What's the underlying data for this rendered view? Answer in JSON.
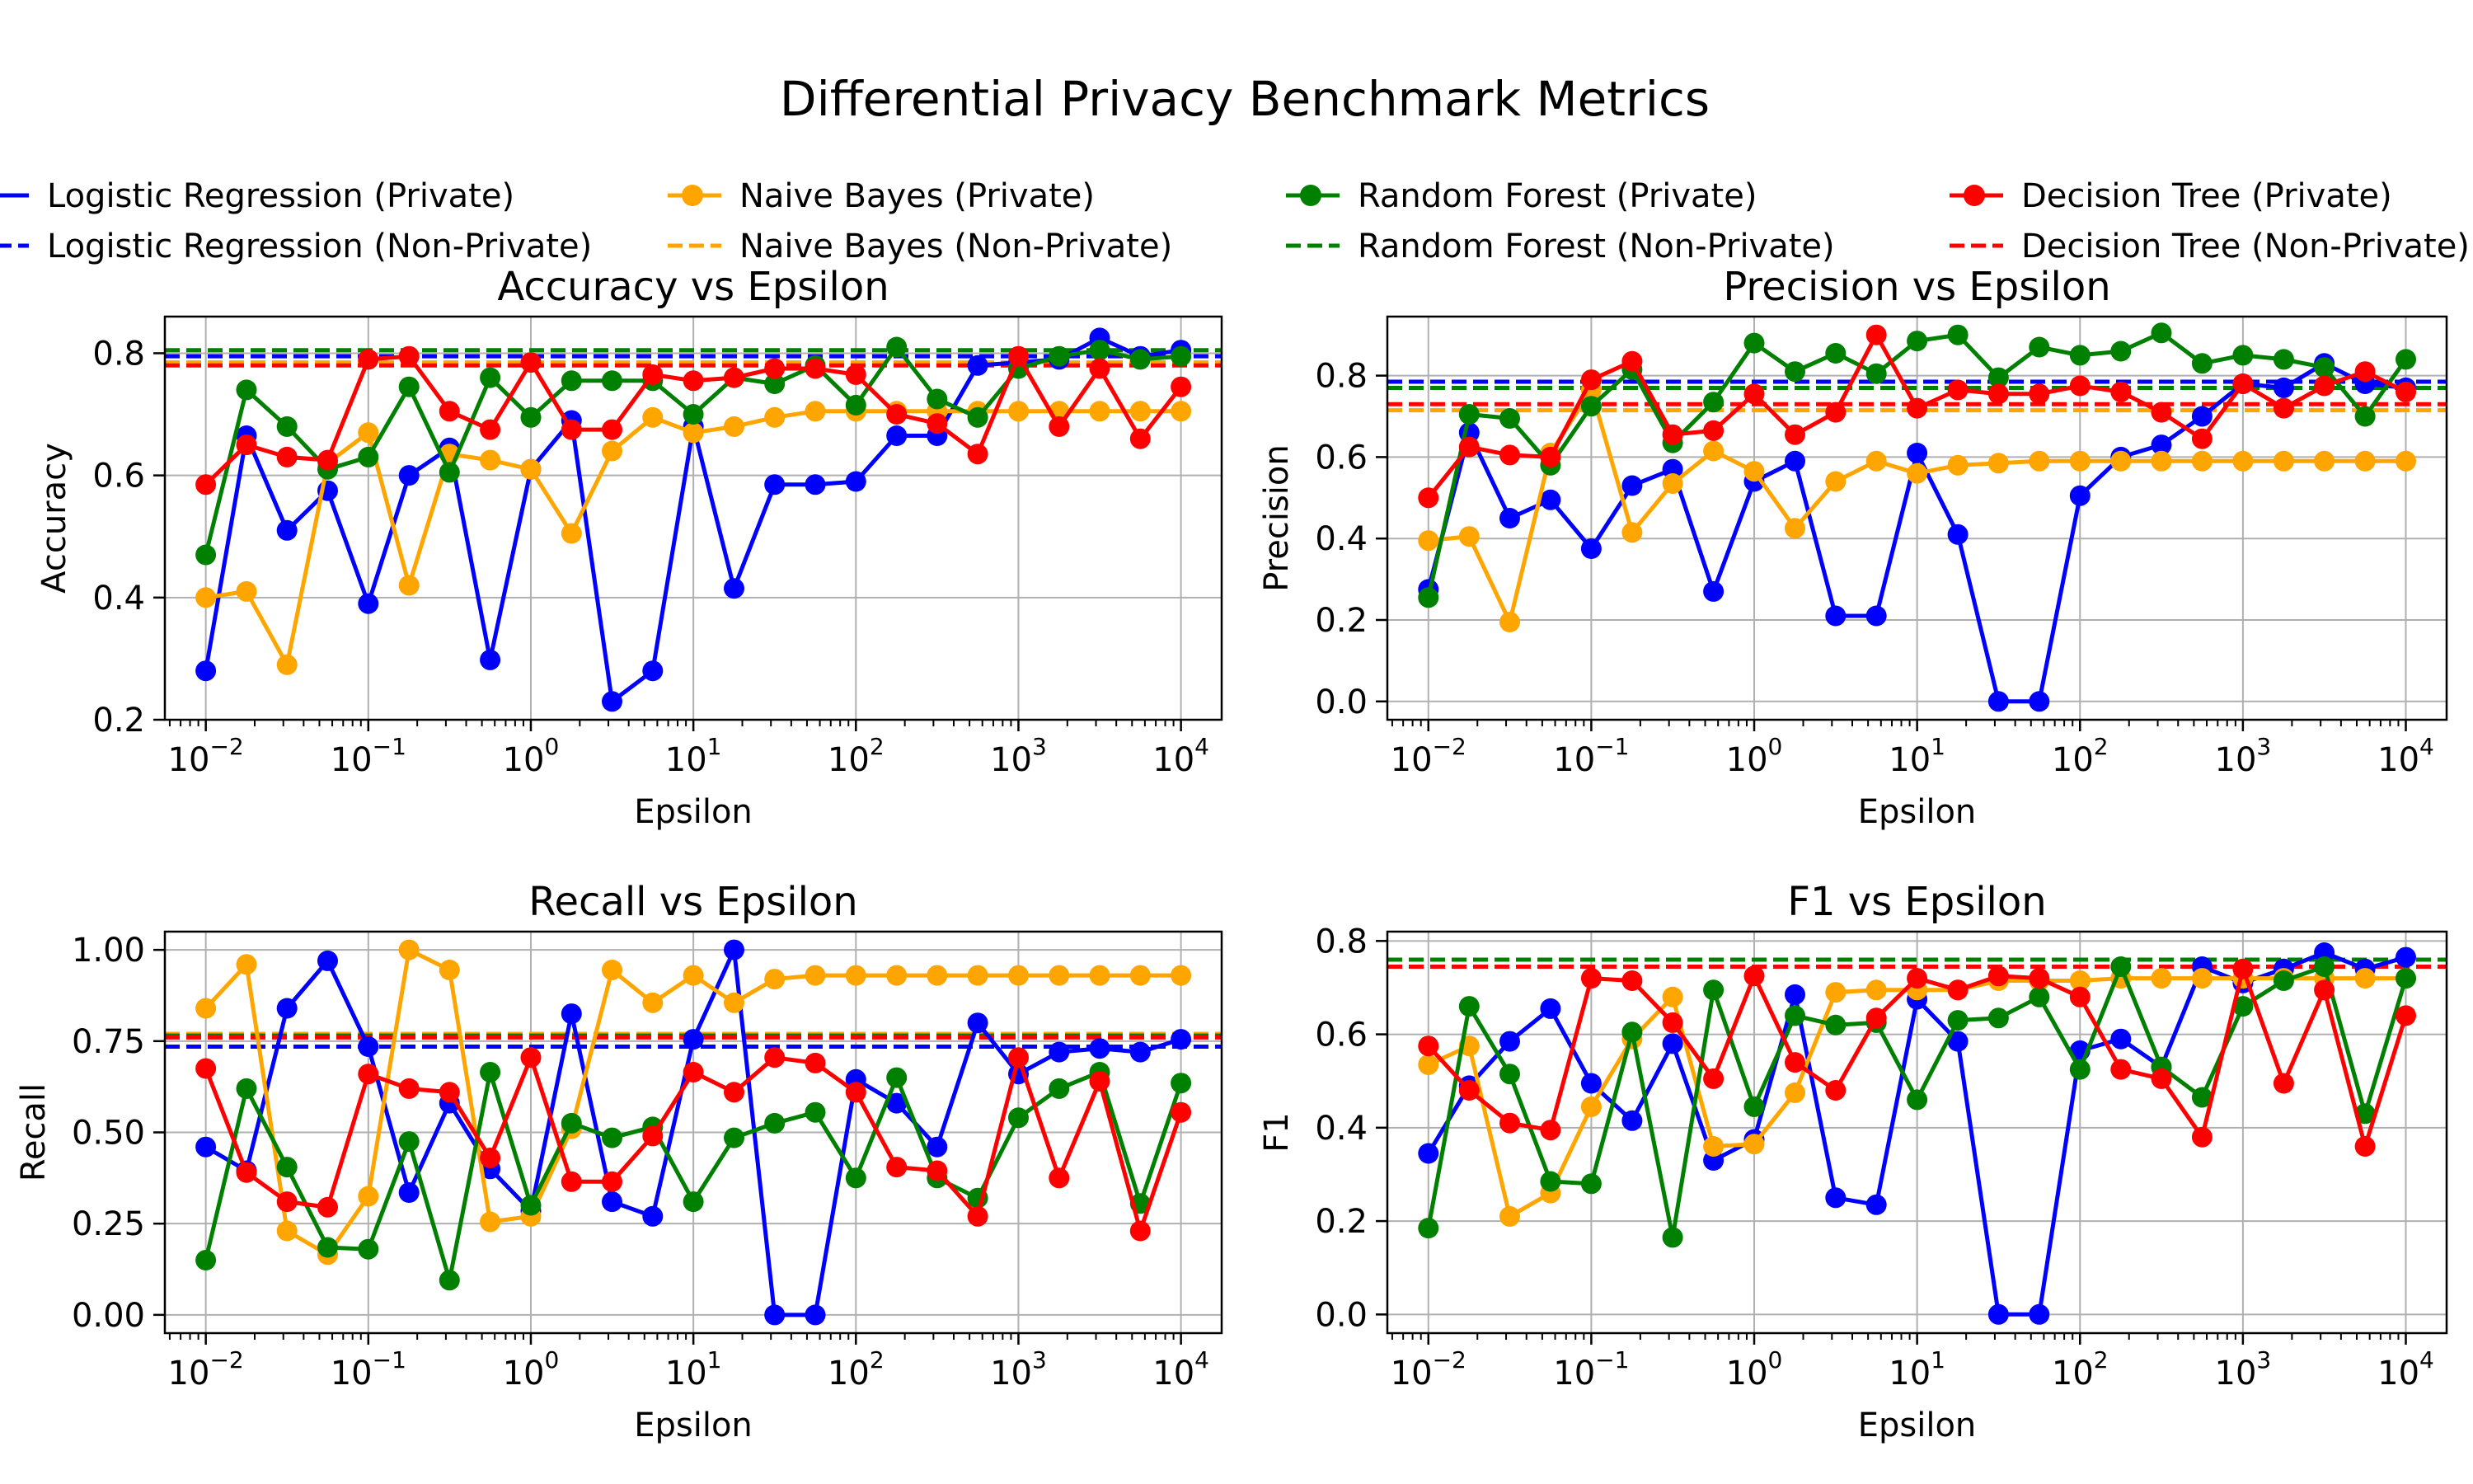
{
  "title": "Differential Privacy Benchmark Metrics",
  "legend": [
    {
      "label": "Logistic Regression (Private)",
      "color": "#0000ff",
      "style": "marker-line"
    },
    {
      "label": "Logistic Regression (Non-Private)",
      "color": "#0000ff",
      "style": "dashed"
    },
    {
      "label": "Naive Bayes (Private)",
      "color": "#ffa500",
      "style": "marker-line"
    },
    {
      "label": "Naive Bayes (Non-Private)",
      "color": "#ffa500",
      "style": "dashed"
    },
    {
      "label": "Random Forest (Private)",
      "color": "#008000",
      "style": "marker-line"
    },
    {
      "label": "Random Forest (Non-Private)",
      "color": "#008000",
      "style": "dashed"
    },
    {
      "label": "Decision Tree (Private)",
      "color": "#ff0000",
      "style": "marker-line"
    },
    {
      "label": "Decision Tree (Non-Private)",
      "color": "#ff0000",
      "style": "dashed"
    }
  ],
  "chart_data": [
    {
      "type": "line",
      "title": "Accuracy vs Epsilon",
      "xlabel": "Epsilon",
      "ylabel": "Accuracy",
      "xscale": "log",
      "xlim": [
        0.0056,
        17800
      ],
      "ylim": [
        0.2,
        0.86
      ],
      "yticks": [
        0.2,
        0.4,
        0.6,
        0.8
      ],
      "ytick_labels": [
        "0.2",
        "0.4",
        "0.6",
        "0.8"
      ],
      "xticks": [
        0.01,
        0.1,
        1,
        10,
        100,
        1000,
        10000
      ],
      "xtick_labels": [
        [
          "10",
          "−2"
        ],
        [
          "10",
          "−1"
        ],
        [
          "10",
          "0"
        ],
        [
          "10",
          "1"
        ],
        [
          "10",
          "2"
        ],
        [
          "10",
          "3"
        ],
        [
          "10",
          "4"
        ]
      ],
      "grid": true,
      "x": [
        0.01,
        0.0178,
        0.0316,
        0.0562,
        0.1,
        0.178,
        0.316,
        0.562,
        1,
        1.78,
        3.16,
        5.62,
        10,
        17.8,
        31.6,
        56.2,
        100,
        178,
        316,
        562,
        1000,
        1780,
        3160,
        5620,
        10000
      ],
      "series": [
        {
          "name": "Logistic Regression (Private)",
          "color": "#0000ff",
          "values": [
            0.28,
            0.665,
            0.51,
            0.575,
            0.39,
            0.6,
            0.645,
            0.298,
            0.61,
            0.69,
            0.23,
            0.28,
            0.68,
            0.415,
            0.585,
            0.585,
            0.59,
            0.665,
            0.665,
            0.78,
            0.785,
            0.79,
            0.825,
            0.795,
            0.805
          ],
          "baseline": 0.795
        },
        {
          "name": "Naive Bayes (Private)",
          "color": "#ffa500",
          "values": [
            0.4,
            0.41,
            0.29,
            0.62,
            0.67,
            0.42,
            0.635,
            0.625,
            0.61,
            0.505,
            0.64,
            0.695,
            0.67,
            0.68,
            0.695,
            0.705,
            0.705,
            0.705,
            0.705,
            0.705,
            0.705,
            0.705,
            0.705,
            0.705,
            0.705
          ],
          "baseline": 0.785
        },
        {
          "name": "Random Forest (Private)",
          "color": "#008000",
          "values": [
            0.47,
            0.74,
            0.68,
            0.61,
            0.63,
            0.745,
            0.605,
            0.76,
            0.695,
            0.755,
            0.755,
            0.755,
            0.7,
            0.76,
            0.75,
            0.78,
            0.715,
            0.81,
            0.725,
            0.695,
            0.775,
            0.795,
            0.805,
            0.79,
            0.795
          ],
          "baseline": 0.805
        },
        {
          "name": "Decision Tree (Private)",
          "color": "#ff0000",
          "values": [
            0.585,
            0.65,
            0.63,
            0.625,
            0.79,
            0.795,
            0.705,
            0.675,
            0.785,
            0.675,
            0.675,
            0.765,
            0.755,
            0.76,
            0.775,
            0.775,
            0.765,
            0.7,
            0.685,
            0.635,
            0.795,
            0.68,
            0.775,
            0.66,
            0.745
          ],
          "baseline": 0.78
        }
      ]
    },
    {
      "type": "line",
      "title": "Precision vs Epsilon",
      "xlabel": "Epsilon",
      "ylabel": "Precision",
      "xscale": "log",
      "xlim": [
        0.0056,
        17800
      ],
      "ylim": [
        -0.045,
        0.945
      ],
      "yticks": [
        0,
        0.2,
        0.4,
        0.6,
        0.8
      ],
      "ytick_labels": [
        "0.0",
        "0.2",
        "0.4",
        "0.6",
        "0.8"
      ],
      "xticks": [
        0.01,
        0.1,
        1,
        10,
        100,
        1000,
        10000
      ],
      "xtick_labels": [
        [
          "10",
          "−2"
        ],
        [
          "10",
          "−1"
        ],
        [
          "10",
          "0"
        ],
        [
          "10",
          "1"
        ],
        [
          "10",
          "2"
        ],
        [
          "10",
          "3"
        ],
        [
          "10",
          "4"
        ]
      ],
      "grid": true,
      "x": [
        0.01,
        0.0178,
        0.0316,
        0.0562,
        0.1,
        0.178,
        0.316,
        0.562,
        1,
        1.78,
        3.16,
        5.62,
        10,
        17.8,
        31.6,
        56.2,
        100,
        178,
        316,
        562,
        1000,
        1780,
        3160,
        5620,
        10000
      ],
      "series": [
        {
          "name": "Logistic Regression (Private)",
          "color": "#0000ff",
          "values": [
            0.275,
            0.66,
            0.45,
            0.495,
            0.375,
            0.53,
            0.57,
            0.27,
            0.54,
            0.59,
            0.21,
            0.21,
            0.61,
            0.41,
            0.0,
            0.0,
            0.505,
            0.6,
            0.63,
            0.7,
            0.78,
            0.77,
            0.83,
            0.78,
            0.77
          ],
          "baseline": 0.785
        },
        {
          "name": "Naive Bayes (Private)",
          "color": "#ffa500",
          "values": [
            0.395,
            0.405,
            0.195,
            0.61,
            0.765,
            0.415,
            0.535,
            0.615,
            0.565,
            0.425,
            0.54,
            0.59,
            0.56,
            0.58,
            0.585,
            0.59,
            0.59,
            0.59,
            0.59,
            0.59,
            0.59,
            0.59,
            0.59,
            0.59,
            0.59
          ],
          "baseline": 0.715
        },
        {
          "name": "Random Forest (Private)",
          "color": "#008000",
          "values": [
            0.255,
            0.705,
            0.695,
            0.58,
            0.725,
            0.815,
            0.635,
            0.735,
            0.88,
            0.81,
            0.855,
            0.805,
            0.885,
            0.9,
            0.795,
            0.87,
            0.85,
            0.86,
            0.905,
            0.83,
            0.85,
            0.84,
            0.82,
            0.7,
            0.84
          ],
          "baseline": 0.77
        },
        {
          "name": "Decision Tree (Private)",
          "color": "#ff0000",
          "values": [
            0.5,
            0.625,
            0.605,
            0.6,
            0.79,
            0.835,
            0.655,
            0.665,
            0.755,
            0.655,
            0.71,
            0.9,
            0.72,
            0.765,
            0.755,
            0.755,
            0.775,
            0.76,
            0.71,
            0.645,
            0.78,
            0.72,
            0.775,
            0.81,
            0.76
          ],
          "baseline": 0.73
        }
      ]
    },
    {
      "type": "line",
      "title": "Recall vs Epsilon",
      "xlabel": "Epsilon",
      "ylabel": "Recall",
      "xscale": "log",
      "xlim": [
        0.0056,
        17800
      ],
      "ylim": [
        -0.05,
        1.05
      ],
      "yticks": [
        0,
        0.25,
        0.5,
        0.75,
        1.0
      ],
      "ytick_labels": [
        "0.00",
        "0.25",
        "0.50",
        "0.75",
        "1.00"
      ],
      "xticks": [
        0.01,
        0.1,
        1,
        10,
        100,
        1000,
        10000
      ],
      "xtick_labels": [
        [
          "10",
          "−2"
        ],
        [
          "10",
          "−1"
        ],
        [
          "10",
          "0"
        ],
        [
          "10",
          "1"
        ],
        [
          "10",
          "2"
        ],
        [
          "10",
          "3"
        ],
        [
          "10",
          "4"
        ]
      ],
      "grid": true,
      "x": [
        0.01,
        0.0178,
        0.0316,
        0.0562,
        0.1,
        0.178,
        0.316,
        0.562,
        1,
        1.78,
        3.16,
        5.62,
        10,
        17.8,
        31.6,
        56.2,
        100,
        178,
        316,
        562,
        1000,
        1780,
        3160,
        5620,
        10000
      ],
      "series": [
        {
          "name": "Logistic Regression (Private)",
          "color": "#0000ff",
          "values": [
            0.46,
            0.395,
            0.84,
            0.97,
            0.735,
            0.335,
            0.58,
            0.4,
            0.285,
            0.825,
            0.31,
            0.27,
            0.755,
            1.0,
            0.0,
            0.0,
            0.645,
            0.58,
            0.46,
            0.8,
            0.66,
            0.72,
            0.73,
            0.72,
            0.755
          ],
          "baseline": 0.735
        },
        {
          "name": "Naive Bayes (Private)",
          "color": "#ffa500",
          "values": [
            0.84,
            0.96,
            0.23,
            0.165,
            0.325,
            1.0,
            0.945,
            0.255,
            0.27,
            0.51,
            0.945,
            0.855,
            0.93,
            0.855,
            0.92,
            0.93,
            0.93,
            0.93,
            0.93,
            0.93,
            0.93,
            0.93,
            0.93,
            0.93,
            0.93
          ],
          "baseline": 0.77
        },
        {
          "name": "Random Forest (Private)",
          "color": "#008000",
          "values": [
            0.15,
            0.62,
            0.405,
            0.185,
            0.18,
            0.475,
            0.095,
            0.665,
            0.3,
            0.525,
            0.485,
            0.515,
            0.31,
            0.485,
            0.525,
            0.555,
            0.375,
            0.65,
            0.375,
            0.32,
            0.54,
            0.62,
            0.665,
            0.305,
            0.635
          ],
          "baseline": 0.765
        },
        {
          "name": "Decision Tree (Private)",
          "color": "#ff0000",
          "values": [
            0.675,
            0.39,
            0.31,
            0.295,
            0.66,
            0.62,
            0.61,
            0.43,
            0.705,
            0.365,
            0.365,
            0.49,
            0.665,
            0.61,
            0.705,
            0.69,
            0.61,
            0.405,
            0.395,
            0.27,
            0.705,
            0.375,
            0.64,
            0.23,
            0.555
          ],
          "baseline": 0.76
        }
      ]
    },
    {
      "type": "line",
      "title": "F1 vs Epsilon",
      "xlabel": "Epsilon",
      "ylabel": "F1",
      "xscale": "log",
      "xlim": [
        0.0056,
        17800
      ],
      "ylim": [
        -0.04,
        0.82
      ],
      "yticks": [
        0,
        0.2,
        0.4,
        0.6,
        0.8
      ],
      "ytick_labels": [
        "0.0",
        "0.2",
        "0.4",
        "0.6",
        "0.8"
      ],
      "xticks": [
        0.01,
        0.1,
        1,
        10,
        100,
        1000,
        10000
      ],
      "xtick_labels": [
        [
          "10",
          "−2"
        ],
        [
          "10",
          "−1"
        ],
        [
          "10",
          "0"
        ],
        [
          "10",
          "1"
        ],
        [
          "10",
          "2"
        ],
        [
          "10",
          "3"
        ],
        [
          "10",
          "4"
        ]
      ],
      "grid": true,
      "x": [
        0.01,
        0.0178,
        0.0316,
        0.0562,
        0.1,
        0.178,
        0.316,
        0.562,
        1,
        1.78,
        3.16,
        5.62,
        10,
        17.8,
        31.6,
        56.2,
        100,
        178,
        316,
        562,
        1000,
        1780,
        3160,
        5620,
        10000
      ],
      "series": [
        {
          "name": "Logistic Regression (Private)",
          "color": "#0000ff",
          "values": [
            0.345,
            0.49,
            0.585,
            0.655,
            0.495,
            0.415,
            0.58,
            0.33,
            0.375,
            0.685,
            0.25,
            0.235,
            0.675,
            0.585,
            0.0,
            0.0,
            0.565,
            0.59,
            0.53,
            0.745,
            0.71,
            0.74,
            0.775,
            0.74,
            0.765
          ],
          "baseline": 0.76
        },
        {
          "name": "Naive Bayes (Private)",
          "color": "#ffa500",
          "values": [
            0.535,
            0.575,
            0.21,
            0.26,
            0.445,
            0.59,
            0.68,
            0.36,
            0.365,
            0.475,
            0.69,
            0.695,
            0.695,
            0.695,
            0.715,
            0.715,
            0.715,
            0.72,
            0.72,
            0.72,
            0.72,
            0.72,
            0.72,
            0.72,
            0.72
          ],
          "baseline": 0.745
        },
        {
          "name": "Random Forest (Private)",
          "color": "#008000",
          "values": [
            0.185,
            0.66,
            0.515,
            0.285,
            0.28,
            0.605,
            0.165,
            0.695,
            0.445,
            0.64,
            0.62,
            0.625,
            0.46,
            0.63,
            0.635,
            0.68,
            0.525,
            0.745,
            0.53,
            0.465,
            0.66,
            0.715,
            0.745,
            0.43,
            0.72
          ],
          "baseline": 0.76
        },
        {
          "name": "Decision Tree (Private)",
          "color": "#ff0000",
          "values": [
            0.575,
            0.48,
            0.41,
            0.395,
            0.72,
            0.715,
            0.625,
            0.505,
            0.725,
            0.54,
            0.48,
            0.635,
            0.72,
            0.695,
            0.725,
            0.72,
            0.68,
            0.525,
            0.505,
            0.38,
            0.74,
            0.495,
            0.695,
            0.36,
            0.64
          ],
          "baseline": 0.745
        }
      ]
    }
  ]
}
